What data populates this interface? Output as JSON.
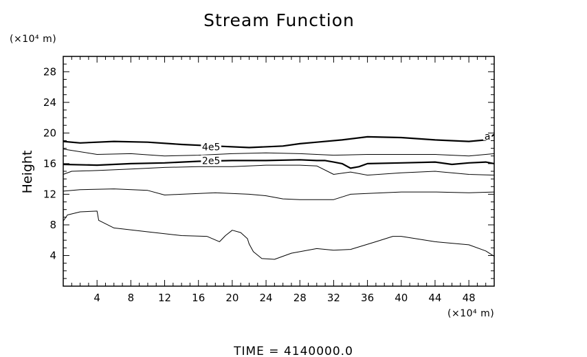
{
  "chart_data": {
    "type": "line",
    "title": "Stream Function",
    "ylabel": "Height",
    "x_unit_label": "(×10⁴ m)",
    "y_unit_label": "(×10⁴ m)",
    "xlim": [
      0,
      51
    ],
    "ylim": [
      0,
      30
    ],
    "x_ticks": [
      4,
      8,
      12,
      16,
      20,
      24,
      28,
      32,
      36,
      40,
      44,
      48
    ],
    "y_ticks": [
      4,
      8,
      12,
      16,
      20,
      24,
      28
    ],
    "x_tick_labels": [
      "4",
      "8",
      "12",
      "16",
      "20",
      "24",
      "28",
      "32",
      "36",
      "40",
      "44",
      "48"
    ],
    "y_tick_labels": [
      "4",
      "8",
      "12",
      "16",
      "20",
      "24",
      "28"
    ],
    "contour_labels": [
      {
        "text": "4e5",
        "x": 17.5,
        "y": 18.2
      },
      {
        "text": "2e5",
        "x": 17.5,
        "y": 16.4
      },
      {
        "text": "a",
        "x": 50.2,
        "y": 19.6
      }
    ],
    "series": [
      {
        "bold": true,
        "x": [
          0,
          2,
          6,
          10,
          14,
          18,
          22,
          26,
          28,
          30,
          33,
          36,
          40,
          44,
          48,
          50,
          51
        ],
        "y": [
          18.9,
          18.7,
          18.9,
          18.8,
          18.5,
          18.3,
          18.1,
          18.3,
          18.6,
          18.8,
          19.1,
          19.5,
          19.4,
          19.1,
          18.9,
          19.1,
          19.8
        ]
      },
      {
        "bold": false,
        "x": [
          0,
          4,
          8,
          12,
          16,
          20,
          24,
          28,
          32,
          36,
          40,
          44,
          48,
          51
        ],
        "y": [
          17.9,
          17.2,
          17.3,
          17.0,
          17.1,
          17.3,
          17.4,
          17.3,
          17.1,
          17.2,
          17.2,
          17.2,
          17.0,
          17.3
        ]
      },
      {
        "bold": true,
        "x": [
          0,
          4,
          8,
          12,
          16,
          20,
          24,
          28,
          30,
          31,
          32,
          33,
          34,
          35,
          36,
          40,
          44,
          46,
          48,
          50,
          51
        ],
        "y": [
          15.9,
          15.8,
          16.0,
          16.1,
          16.3,
          16.4,
          16.4,
          16.5,
          16.4,
          16.4,
          16.2,
          16.0,
          15.4,
          15.6,
          16.0,
          16.1,
          16.2,
          15.9,
          16.1,
          16.2,
          16.0
        ]
      },
      {
        "bold": false,
        "x": [
          0,
          1,
          4,
          8,
          12,
          16,
          20,
          24,
          28,
          30,
          32,
          34,
          36,
          40,
          44,
          48,
          51
        ],
        "y": [
          14.6,
          15.0,
          15.1,
          15.3,
          15.5,
          15.6,
          15.6,
          15.8,
          15.8,
          15.7,
          14.6,
          14.9,
          14.5,
          14.8,
          15.0,
          14.6,
          14.5
        ]
      },
      {
        "bold": false,
        "x": [
          0,
          2,
          6,
          10,
          12,
          14,
          18,
          22,
          24,
          26,
          28,
          32,
          34,
          36,
          40,
          44,
          48,
          51
        ],
        "y": [
          12.4,
          12.6,
          12.7,
          12.5,
          11.9,
          12.0,
          12.2,
          12.0,
          11.8,
          11.4,
          11.3,
          11.3,
          12.0,
          12.1,
          12.3,
          12.3,
          12.2,
          12.3
        ]
      },
      {
        "bold": false,
        "x": [
          0,
          0.5,
          2,
          4,
          4.2,
          6,
          10,
          14,
          17,
          18.5,
          19.2,
          20,
          21,
          21.8,
          22,
          22.5,
          23.5,
          25,
          27,
          30,
          32,
          34,
          37,
          39,
          40,
          44,
          48,
          50,
          51
        ],
        "y": [
          8.5,
          9.3,
          9.7,
          9.8,
          8.6,
          7.6,
          7.1,
          6.6,
          6.5,
          5.8,
          6.6,
          7.3,
          7.0,
          6.2,
          5.5,
          4.5,
          3.6,
          3.5,
          4.3,
          4.9,
          4.7,
          4.8,
          5.8,
          6.5,
          6.5,
          5.8,
          5.4,
          4.6,
          3.9
        ]
      }
    ]
  },
  "footer": {
    "label": "TIME  =  4140000.0"
  }
}
